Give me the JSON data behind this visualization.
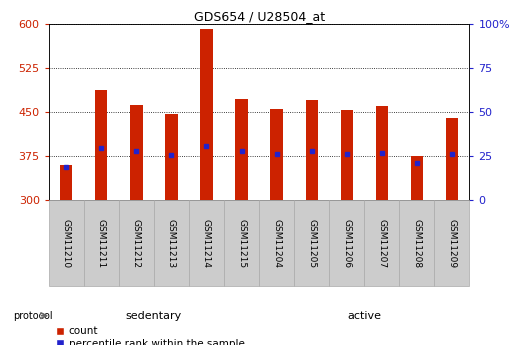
{
  "title": "GDS654 / U28504_at",
  "samples": [
    "GSM11210",
    "GSM11211",
    "GSM11212",
    "GSM11213",
    "GSM11214",
    "GSM11215",
    "GSM11204",
    "GSM11205",
    "GSM11206",
    "GSM11207",
    "GSM11208",
    "GSM11209"
  ],
  "count_values": [
    360,
    487,
    462,
    447,
    592,
    472,
    455,
    470,
    453,
    460,
    375,
    440
  ],
  "percentile_y_values": [
    357,
    388,
    383,
    377,
    393,
    384,
    379,
    384,
    379,
    381,
    363,
    378
  ],
  "groups": [
    {
      "label": "sedentary",
      "start": 0,
      "end": 6,
      "color_light": "#ccf0cc",
      "color_dark": "#55cc55"
    },
    {
      "label": "active",
      "start": 6,
      "end": 12,
      "color_light": "#55cc55",
      "color_dark": "#33aa33"
    }
  ],
  "ylim_left": [
    300,
    600
  ],
  "ylim_right": [
    0,
    100
  ],
  "yticks_left": [
    300,
    375,
    450,
    525,
    600
  ],
  "yticks_right": [
    0,
    25,
    50,
    75,
    100
  ],
  "bar_color": "#cc2200",
  "dot_color": "#2222cc",
  "bar_width": 0.35,
  "left_tick_color": "#cc2200",
  "right_tick_color": "#2222cc",
  "background_color": "#ffffff",
  "legend_count_label": "count",
  "legend_percentile_label": "percentile rank within the sample",
  "protocol_label": "protocol",
  "label_box_color": "#cccccc",
  "label_box_edge": "#aaaaaa"
}
